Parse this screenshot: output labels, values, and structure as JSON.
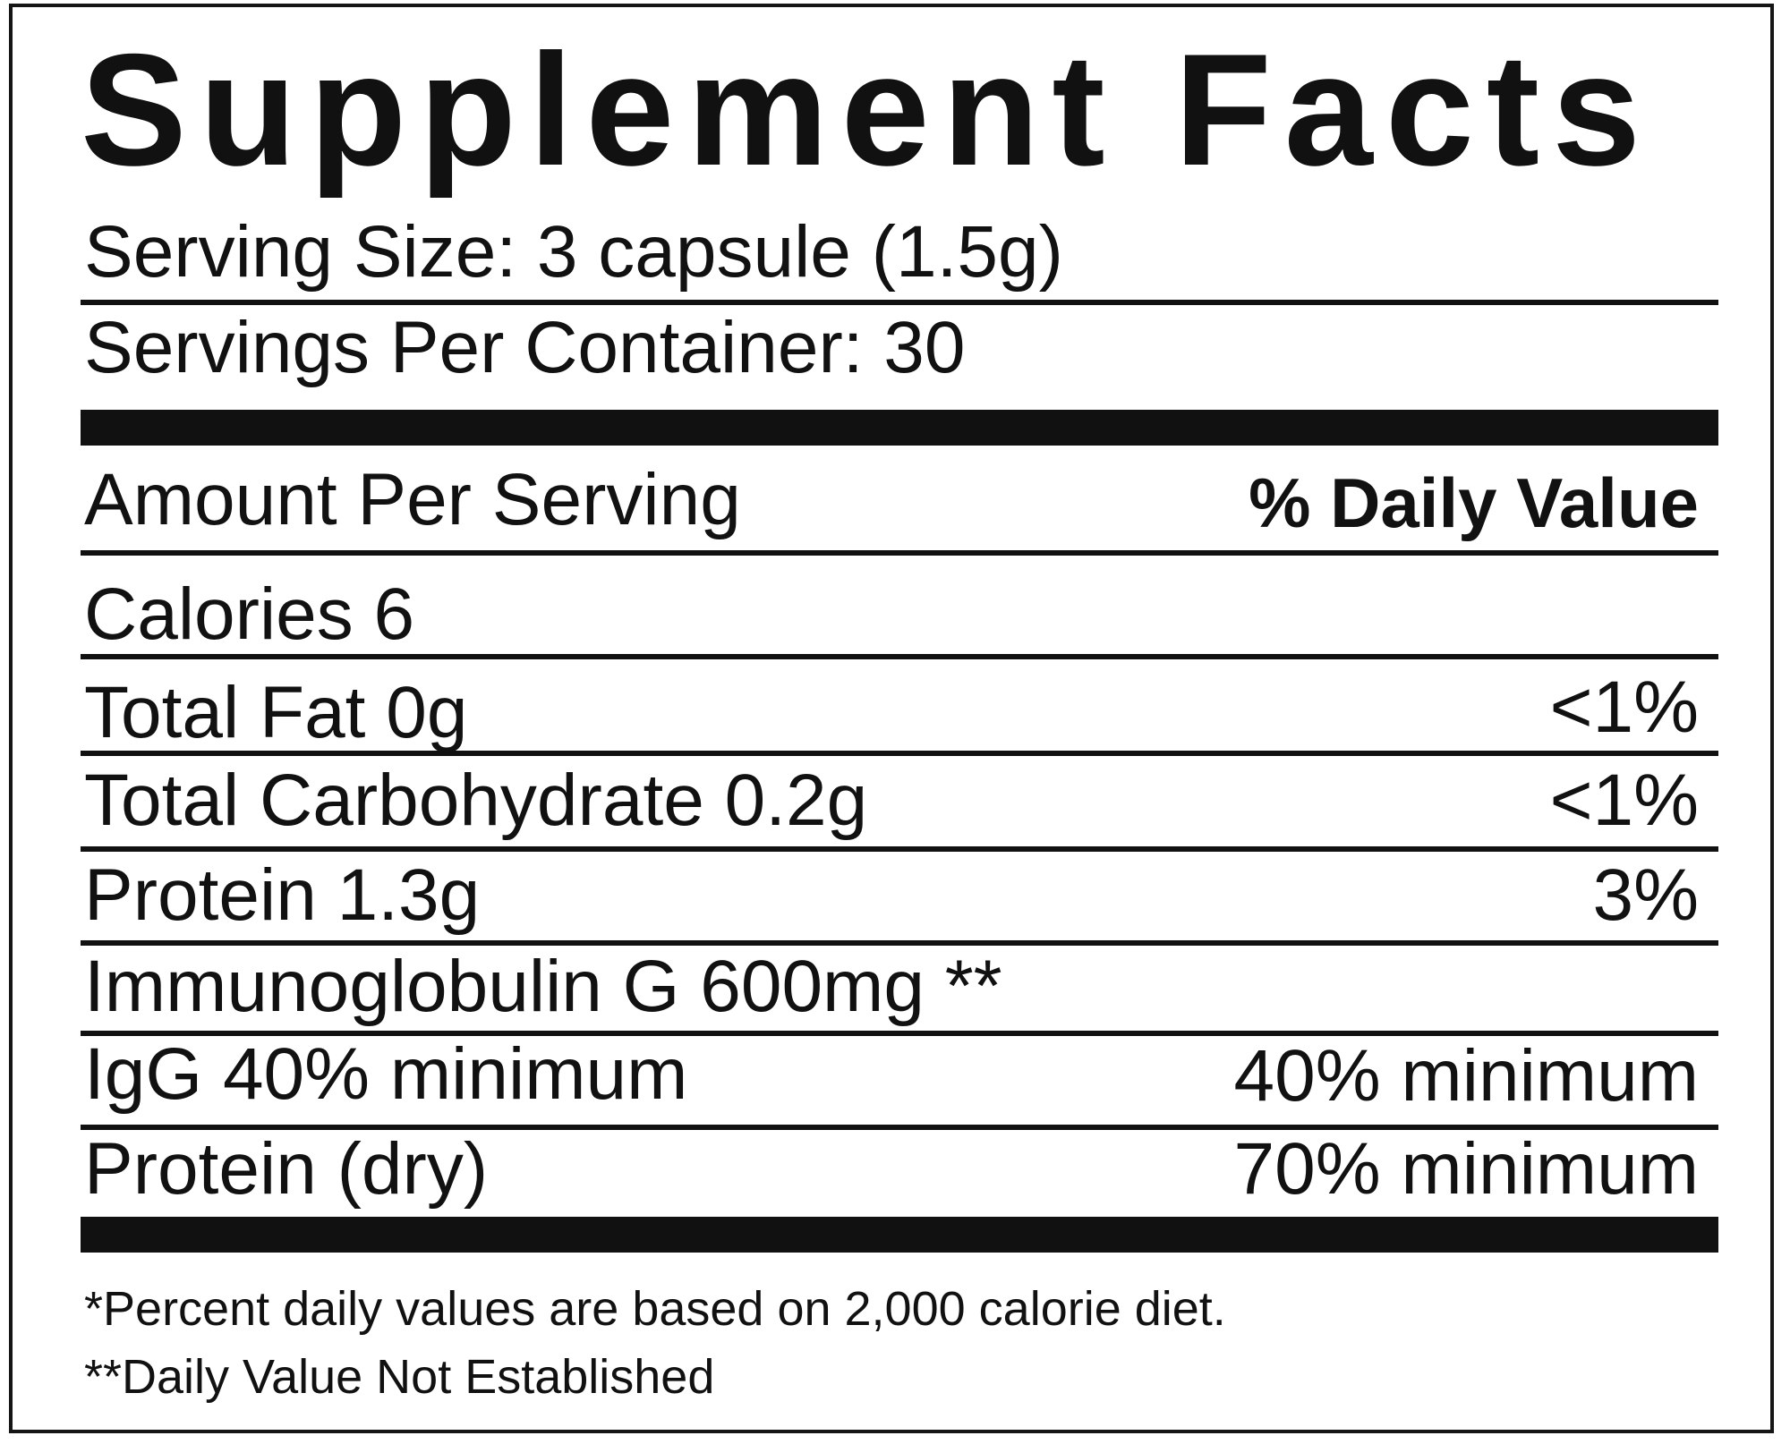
{
  "title": "Supplement Facts",
  "serving_size": "Serving Size: 3 capsule (1.5g)",
  "servings_per_container": "Servings Per Container: 30",
  "header": {
    "amount_per_serving": "Amount Per Serving",
    "daily_value": "% Daily Value"
  },
  "calories": "Calories  6",
  "nutrients": [
    {
      "label": "Total Fat 0g",
      "dv": "<1%"
    },
    {
      "label": "Total Carbohydrate 0.2g",
      "dv": "<1%"
    },
    {
      "label": "Protein 1.3g",
      "dv": "3%"
    },
    {
      "label": "Immunoglobulin G 600mg **",
      "dv": ""
    },
    {
      "label": "IgG 40% minimum",
      "dv": "40% minimum"
    },
    {
      "label": "Protein (dry)",
      "dv": "70% minimum"
    }
  ],
  "footnotes": [
    "*Percent daily values are based on 2,000 calorie diet.",
    "**Daily Value Not Established"
  ]
}
